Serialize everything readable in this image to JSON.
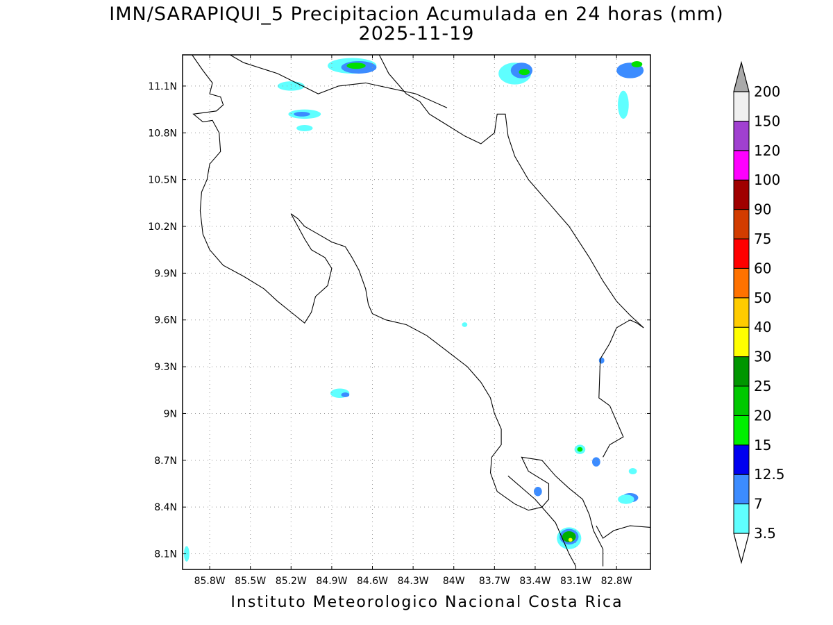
{
  "title": {
    "line1": "IMN/SARAPIQUI_5 Precipitacion Acumulada en 24 horas (mm)",
    "line2": "2025-11-19"
  },
  "footer": "Instituto Meteorologico Nacional Costa Rica",
  "map": {
    "lon_range": [
      -86.0,
      -82.55
    ],
    "lat_range": [
      8.0,
      11.3
    ],
    "lon_ticks": [
      {
        "value": -85.8,
        "label": "85.8W"
      },
      {
        "value": -85.5,
        "label": "85.5W"
      },
      {
        "value": -85.2,
        "label": "85.2W"
      },
      {
        "value": -84.9,
        "label": "84.9W"
      },
      {
        "value": -84.6,
        "label": "84.6W"
      },
      {
        "value": -84.3,
        "label": "84.3W"
      },
      {
        "value": -84.0,
        "label": "84W"
      },
      {
        "value": -83.7,
        "label": "83.7W"
      },
      {
        "value": -83.4,
        "label": "83.4W"
      },
      {
        "value": -83.1,
        "label": "83.1W"
      },
      {
        "value": -82.8,
        "label": "82.8W"
      }
    ],
    "lat_ticks": [
      {
        "value": 11.1,
        "label": "11.1N"
      },
      {
        "value": 10.8,
        "label": "10.8N"
      },
      {
        "value": 10.5,
        "label": "10.5N"
      },
      {
        "value": 10.2,
        "label": "10.2N"
      },
      {
        "value": 9.9,
        "label": "9.9N"
      },
      {
        "value": 9.6,
        "label": "9.6N"
      },
      {
        "value": 9.3,
        "label": "9.3N"
      },
      {
        "value": 9.0,
        "label": "9N"
      },
      {
        "value": 8.7,
        "label": "8.7N"
      },
      {
        "value": 8.4,
        "label": "8.4N"
      },
      {
        "value": 8.1,
        "label": "8.1N"
      }
    ],
    "grid": true,
    "coastlines": [
      [
        [
          -85.93,
          11.3
        ],
        [
          -85.85,
          11.2
        ],
        [
          -85.78,
          11.12
        ],
        [
          -85.8,
          11.05
        ],
        [
          -85.72,
          11.03
        ],
        [
          -85.7,
          10.98
        ],
        [
          -85.75,
          10.94
        ],
        [
          -85.92,
          10.92
        ],
        [
          -85.85,
          10.87
        ],
        [
          -85.78,
          10.88
        ],
        [
          -85.73,
          10.8
        ],
        [
          -85.72,
          10.68
        ],
        [
          -85.8,
          10.6
        ],
        [
          -85.82,
          10.5
        ],
        [
          -85.86,
          10.42
        ],
        [
          -85.87,
          10.3
        ],
        [
          -85.85,
          10.15
        ],
        [
          -85.8,
          10.05
        ],
        [
          -85.7,
          9.95
        ],
        [
          -85.55,
          9.88
        ],
        [
          -85.4,
          9.8
        ],
        [
          -85.3,
          9.72
        ],
        [
          -85.2,
          9.65
        ],
        [
          -85.1,
          9.58
        ],
        [
          -85.05,
          9.65
        ],
        [
          -85.02,
          9.75
        ],
        [
          -84.93,
          9.82
        ],
        [
          -84.9,
          9.93
        ],
        [
          -84.95,
          10.0
        ],
        [
          -85.05,
          10.05
        ],
        [
          -85.1,
          10.12
        ],
        [
          -85.15,
          10.2
        ],
        [
          -85.2,
          10.28
        ],
        [
          -85.15,
          10.25
        ],
        [
          -85.1,
          10.2
        ],
        [
          -85.0,
          10.15
        ],
        [
          -84.9,
          10.1
        ],
        [
          -84.8,
          10.07
        ],
        [
          -84.75,
          10.0
        ],
        [
          -84.7,
          9.92
        ],
        [
          -84.65,
          9.8
        ],
        [
          -84.63,
          9.7
        ],
        [
          -84.6,
          9.64
        ],
        [
          -84.5,
          9.6
        ],
        [
          -84.35,
          9.57
        ],
        [
          -84.2,
          9.5
        ],
        [
          -84.05,
          9.4
        ],
        [
          -83.9,
          9.3
        ],
        [
          -83.8,
          9.2
        ],
        [
          -83.73,
          9.1
        ],
        [
          -83.7,
          9.0
        ],
        [
          -83.65,
          8.9
        ],
        [
          -83.65,
          8.8
        ],
        [
          -83.72,
          8.72
        ],
        [
          -83.73,
          8.62
        ],
        [
          -83.68,
          8.5
        ],
        [
          -83.55,
          8.42
        ],
        [
          -83.45,
          8.38
        ],
        [
          -83.35,
          8.4
        ],
        [
          -83.3,
          8.45
        ],
        [
          -83.3,
          8.55
        ],
        [
          -83.45,
          8.63
        ],
        [
          -83.5,
          8.72
        ],
        [
          -83.35,
          8.7
        ],
        [
          -83.25,
          8.6
        ],
        [
          -83.15,
          8.52
        ],
        [
          -83.05,
          8.45
        ],
        [
          -83.0,
          8.35
        ],
        [
          -82.97,
          8.25
        ],
        [
          -82.9,
          8.13
        ],
        [
          -82.9,
          8.02
        ]
      ],
      [
        [
          -84.55,
          11.3
        ],
        [
          -84.52,
          11.25
        ],
        [
          -84.48,
          11.18
        ],
        [
          -84.42,
          11.12
        ],
        [
          -84.35,
          11.05
        ],
        [
          -84.25,
          11.0
        ],
        [
          -84.18,
          10.92
        ],
        [
          -84.05,
          10.85
        ],
        [
          -83.92,
          10.78
        ],
        [
          -83.8,
          10.73
        ],
        [
          -83.7,
          10.8
        ],
        [
          -83.68,
          10.92
        ],
        [
          -83.62,
          10.92
        ],
        [
          -83.6,
          10.78
        ],
        [
          -83.55,
          10.65
        ],
        [
          -83.45,
          10.5
        ],
        [
          -83.3,
          10.35
        ],
        [
          -83.15,
          10.2
        ],
        [
          -83.0,
          10.0
        ],
        [
          -82.9,
          9.85
        ],
        [
          -82.8,
          9.72
        ],
        [
          -82.7,
          9.63
        ],
        [
          -82.6,
          9.55
        ]
      ],
      [
        [
          -84.05,
          10.96
        ],
        [
          -84.28,
          11.05
        ],
        [
          -84.65,
          11.12
        ],
        [
          -84.85,
          11.1
        ],
        [
          -85.0,
          11.05
        ],
        [
          -85.3,
          11.18
        ],
        [
          -85.55,
          11.25
        ],
        [
          -85.65,
          11.3
        ]
      ],
      [
        [
          -83.1,
          8.02
        ],
        [
          -83.15,
          8.1
        ],
        [
          -83.2,
          8.2
        ],
        [
          -83.25,
          8.3
        ],
        [
          -83.4,
          8.45
        ],
        [
          -83.6,
          8.6
        ]
      ],
      [
        [
          -82.95,
          8.28
        ],
        [
          -82.9,
          8.2
        ],
        [
          -82.82,
          8.25
        ],
        [
          -82.7,
          8.28
        ],
        [
          -82.55,
          8.27
        ]
      ],
      [
        [
          -82.6,
          9.55
        ],
        [
          -82.65,
          9.58
        ],
        [
          -82.7,
          9.6
        ],
        [
          -82.8,
          9.55
        ],
        [
          -82.85,
          9.45
        ],
        [
          -82.92,
          9.35
        ],
        [
          -82.93,
          9.1
        ],
        [
          -82.85,
          9.05
        ],
        [
          -82.8,
          8.95
        ],
        [
          -82.75,
          8.85
        ],
        [
          -82.85,
          8.8
        ],
        [
          -82.9,
          8.72
        ]
      ]
    ],
    "precip_blobs": [
      {
        "lon": -84.75,
        "lat": 11.23,
        "rx": 0.18,
        "ry": 0.05,
        "color": "#5fffff"
      },
      {
        "lon": -84.7,
        "lat": 11.22,
        "rx": 0.13,
        "ry": 0.04,
        "color": "#3c8cff"
      },
      {
        "lon": -84.72,
        "lat": 11.23,
        "rx": 0.07,
        "ry": 0.02,
        "color": "#00e000"
      },
      {
        "lon": -83.55,
        "lat": 11.18,
        "rx": 0.12,
        "ry": 0.07,
        "color": "#5fffff"
      },
      {
        "lon": -83.5,
        "lat": 11.2,
        "rx": 0.08,
        "ry": 0.05,
        "color": "#3c8cff"
      },
      {
        "lon": -83.48,
        "lat": 11.19,
        "rx": 0.04,
        "ry": 0.02,
        "color": "#00e000"
      },
      {
        "lon": -82.7,
        "lat": 11.2,
        "rx": 0.1,
        "ry": 0.05,
        "color": "#3c8cff"
      },
      {
        "lon": -82.65,
        "lat": 11.24,
        "rx": 0.04,
        "ry": 0.02,
        "color": "#00e000"
      },
      {
        "lon": -82.75,
        "lat": 10.98,
        "rx": 0.04,
        "ry": 0.09,
        "color": "#5fffff"
      },
      {
        "lon": -85.2,
        "lat": 11.1,
        "rx": 0.1,
        "ry": 0.03,
        "color": "#5fffff"
      },
      {
        "lon": -85.1,
        "lat": 10.92,
        "rx": 0.12,
        "ry": 0.03,
        "color": "#5fffff"
      },
      {
        "lon": -85.12,
        "lat": 10.92,
        "rx": 0.06,
        "ry": 0.015,
        "color": "#3c8cff"
      },
      {
        "lon": -85.1,
        "lat": 10.83,
        "rx": 0.06,
        "ry": 0.02,
        "color": "#5fffff"
      },
      {
        "lon": -84.84,
        "lat": 9.13,
        "rx": 0.07,
        "ry": 0.03,
        "color": "#5fffff"
      },
      {
        "lon": -84.8,
        "lat": 9.12,
        "rx": 0.03,
        "ry": 0.015,
        "color": "#3c8cff"
      },
      {
        "lon": -83.07,
        "lat": 8.77,
        "rx": 0.04,
        "ry": 0.03,
        "color": "#5fffff"
      },
      {
        "lon": -83.07,
        "lat": 8.77,
        "rx": 0.02,
        "ry": 0.015,
        "color": "#00e000"
      },
      {
        "lon": -82.95,
        "lat": 8.69,
        "rx": 0.03,
        "ry": 0.03,
        "color": "#3c8cff"
      },
      {
        "lon": -83.38,
        "lat": 8.5,
        "rx": 0.03,
        "ry": 0.03,
        "color": "#3c8cff"
      },
      {
        "lon": -83.15,
        "lat": 8.2,
        "rx": 0.09,
        "ry": 0.07,
        "color": "#5fffff"
      },
      {
        "lon": -83.15,
        "lat": 8.21,
        "rx": 0.07,
        "ry": 0.05,
        "color": "#3c8cff"
      },
      {
        "lon": -83.15,
        "lat": 8.21,
        "rx": 0.05,
        "ry": 0.035,
        "color": "#00b000"
      },
      {
        "lon": -83.14,
        "lat": 8.19,
        "rx": 0.015,
        "ry": 0.012,
        "color": "#ffff00"
      },
      {
        "lon": -82.7,
        "lat": 8.46,
        "rx": 0.06,
        "ry": 0.03,
        "color": "#3c8cff"
      },
      {
        "lon": -82.73,
        "lat": 8.45,
        "rx": 0.06,
        "ry": 0.03,
        "color": "#5fffff"
      },
      {
        "lon": -82.91,
        "lat": 9.34,
        "rx": 0.02,
        "ry": 0.02,
        "color": "#3c8cff"
      },
      {
        "lon": -85.97,
        "lat": 8.1,
        "rx": 0.02,
        "ry": 0.05,
        "color": "#5fffff"
      },
      {
        "lon": -83.92,
        "lat": 9.57,
        "rx": 0.02,
        "ry": 0.015,
        "color": "#5fffff"
      },
      {
        "lon": -82.68,
        "lat": 8.63,
        "rx": 0.03,
        "ry": 0.02,
        "color": "#5fffff"
      }
    ]
  },
  "colorbar": {
    "levels": [
      {
        "label": "3.5",
        "color": "#5fffff"
      },
      {
        "label": "7",
        "color": "#3c8cff"
      },
      {
        "label": "12.5",
        "color": "#0000f0"
      },
      {
        "label": "15",
        "color": "#00f000"
      },
      {
        "label": "20",
        "color": "#00c800"
      },
      {
        "label": "25",
        "color": "#009600"
      },
      {
        "label": "30",
        "color": "#ffff00"
      },
      {
        "label": "40",
        "color": "#ffcc00"
      },
      {
        "label": "50",
        "color": "#ff7200"
      },
      {
        "label": "60",
        "color": "#ff0000"
      },
      {
        "label": "75",
        "color": "#d23c00"
      },
      {
        "label": "90",
        "color": "#a00000"
      },
      {
        "label": "100",
        "color": "#ff00ff"
      },
      {
        "label": "120",
        "color": "#a040d0"
      },
      {
        "label": "150",
        "color": "#f0f0f0"
      },
      {
        "label": "200",
        "color": "#aaaaaa"
      }
    ],
    "below_color": "#ffffff",
    "above_color": "#aaaaaa"
  }
}
